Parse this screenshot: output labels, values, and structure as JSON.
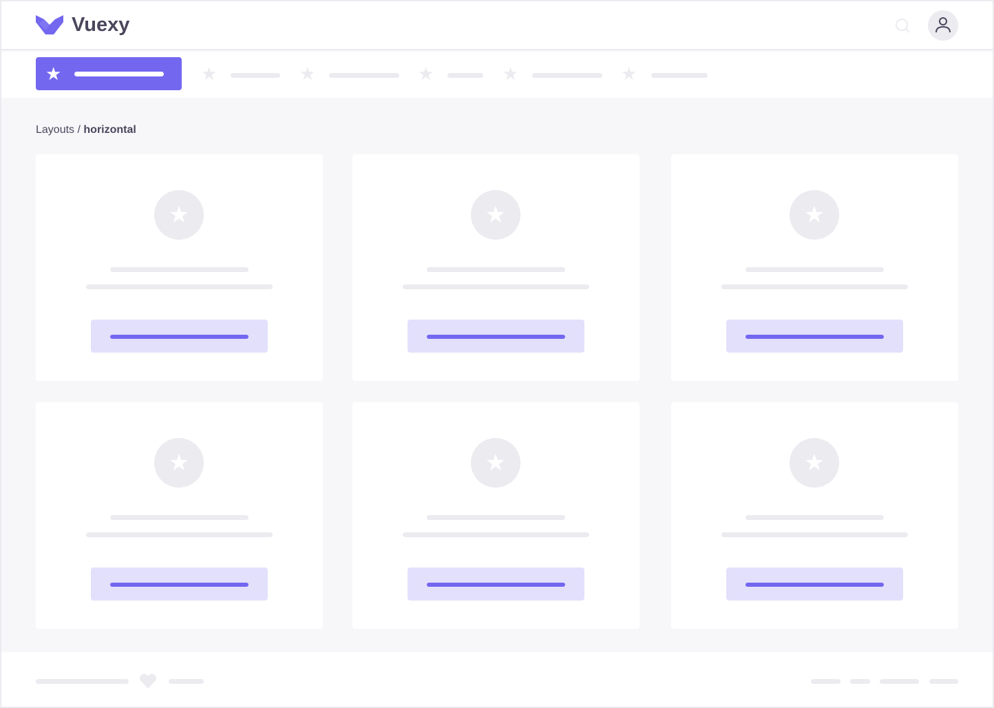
{
  "brand": {
    "name": "Vuexy",
    "color": "#7367f0"
  },
  "header": {
    "search_icon": "search-icon",
    "avatar_icon": "user-icon"
  },
  "nav": {
    "items": [
      {
        "icon": "star-icon",
        "active": true
      },
      {
        "icon": "star-icon",
        "active": false
      },
      {
        "icon": "star-icon",
        "active": false
      },
      {
        "icon": "star-icon",
        "active": false
      },
      {
        "icon": "star-icon",
        "active": false
      },
      {
        "icon": "star-icon",
        "active": false
      }
    ]
  },
  "breadcrumb": {
    "parent": "Layouts",
    "separator": " / ",
    "current": "horizontal"
  },
  "cards": [
    {
      "icon": "star-icon"
    },
    {
      "icon": "star-icon"
    },
    {
      "icon": "star-icon"
    },
    {
      "icon": "star-icon"
    },
    {
      "icon": "star-icon"
    },
    {
      "icon": "star-icon"
    }
  ],
  "footer": {
    "icon": "heart-icon"
  },
  "colors": {
    "primary": "#7367f0",
    "primary_light": "#e3e0fb",
    "placeholder": "#ebebf0",
    "text": "#4b465c"
  }
}
